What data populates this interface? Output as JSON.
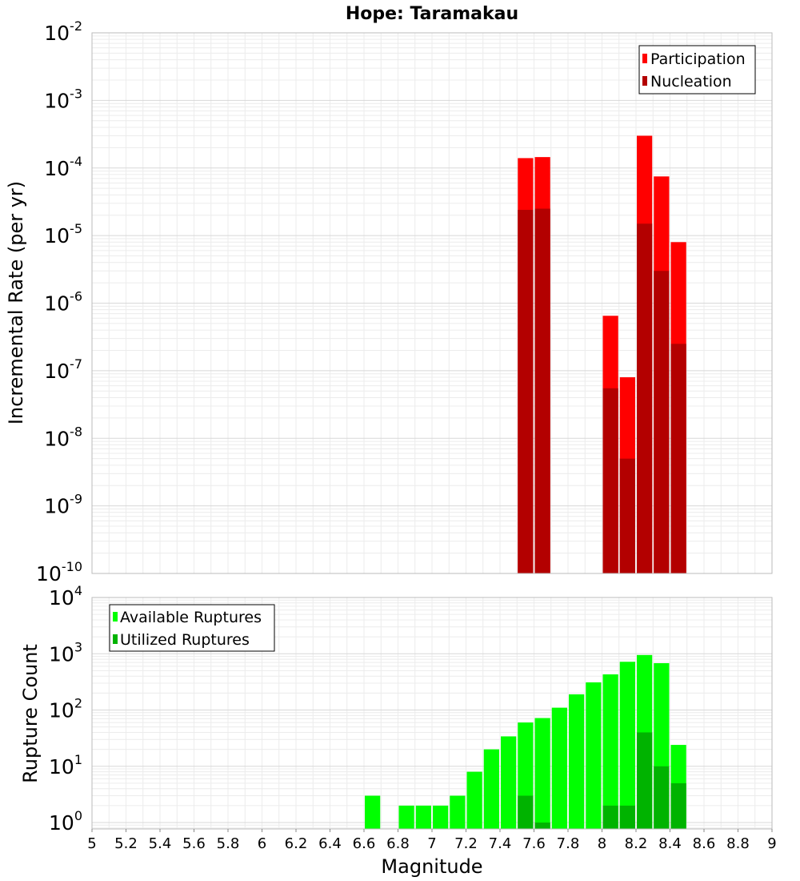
{
  "chart_data": [
    {
      "type": "bar",
      "title": "Hope: Taramakau",
      "xlabel": "",
      "ylabel": "Incremental Rate (per yr)",
      "yscale": "log",
      "ylim": [
        1e-10,
        0.01
      ],
      "xlim": [
        5,
        9
      ],
      "yticks": [
        {
          "base": "10",
          "exp": "-10"
        },
        {
          "base": "10",
          "exp": "-9"
        },
        {
          "base": "10",
          "exp": "-8"
        },
        {
          "base": "10",
          "exp": "-7"
        },
        {
          "base": "10",
          "exp": "-6"
        },
        {
          "base": "10",
          "exp": "-5"
        },
        {
          "base": "10",
          "exp": "-4"
        },
        {
          "base": "10",
          "exp": "-3"
        },
        {
          "base": "10",
          "exp": "-2"
        }
      ],
      "grid": true,
      "legend_position": "top-right",
      "series": [
        {
          "name": "Participation",
          "color": "#ff0000",
          "x": [
            7.55,
            7.65,
            8.05,
            8.15,
            8.25,
            8.35,
            8.45
          ],
          "values": [
            0.00014,
            0.000145,
            6.5e-07,
            8e-08,
            0.0003,
            7.5e-05,
            8e-06
          ]
        },
        {
          "name": "Nucleation",
          "color": "#b30000",
          "x": [
            7.55,
            7.65,
            8.05,
            8.15,
            8.25,
            8.35,
            8.45
          ],
          "values": [
            2.4e-05,
            2.5e-05,
            5.5e-08,
            5e-09,
            1.5e-05,
            3e-06,
            2.5e-07
          ]
        }
      ]
    },
    {
      "type": "bar",
      "xlabel": "Magnitude",
      "ylabel": "Rupture Count",
      "yscale": "log",
      "ylim": [
        0.77,
        10000
      ],
      "xlim": [
        5,
        9
      ],
      "yticks": [
        {
          "base": "10",
          "exp": "0"
        },
        {
          "base": "10",
          "exp": "1"
        },
        {
          "base": "10",
          "exp": "2"
        },
        {
          "base": "10",
          "exp": "3"
        },
        {
          "base": "10",
          "exp": "4"
        }
      ],
      "xticks": [
        "5",
        "5.2",
        "5.4",
        "5.6",
        "5.8",
        "6",
        "6.2",
        "6.4",
        "6.6",
        "6.8",
        "7",
        "7.2",
        "7.4",
        "7.6",
        "7.8",
        "8",
        "8.2",
        "8.4",
        "8.6",
        "8.8",
        "9"
      ],
      "grid": true,
      "legend_position": "top-left",
      "series": [
        {
          "name": "Available Ruptures",
          "color": "#00ff00",
          "x": [
            6.65,
            6.85,
            6.95,
            7.05,
            7.15,
            7.25,
            7.35,
            7.45,
            7.55,
            7.65,
            7.75,
            7.85,
            7.95,
            8.05,
            8.15,
            8.25,
            8.35,
            8.45
          ],
          "values": [
            3,
            2,
            2,
            2,
            3,
            8,
            20,
            34,
            60,
            72,
            110,
            190,
            310,
            430,
            720,
            950,
            680,
            24
          ]
        },
        {
          "name": "Utilized Ruptures",
          "color": "#00b300",
          "x": [
            7.55,
            7.65,
            8.05,
            8.15,
            8.25,
            8.35,
            8.45
          ],
          "values": [
            3,
            1,
            2,
            2,
            40,
            10,
            5
          ]
        }
      ]
    }
  ]
}
